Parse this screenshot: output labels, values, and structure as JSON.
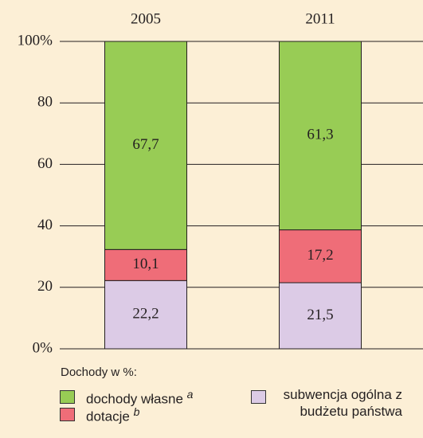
{
  "chart_data": {
    "type": "stacked_bar",
    "categories": [
      "2005",
      "2011"
    ],
    "ylim": [
      0,
      100
    ],
    "yticks": [
      {
        "value": 0,
        "label": "0%"
      },
      20,
      40,
      60,
      80,
      {
        "value": 100,
        "label": "100%"
      }
    ],
    "grid": true,
    "legend_title": "Dochody w %:",
    "series": [
      {
        "name": "subwencja ogólna z budżetu państwa",
        "color": "#dccbe6",
        "values": [
          22.2,
          21.5
        ],
        "value_labels": [
          "22,2",
          "21,5"
        ]
      },
      {
        "name": "dotacje",
        "name_note": "b",
        "color": "#ef6d78",
        "values": [
          10.1,
          17.2
        ],
        "value_labels": [
          "10,1",
          "17,2"
        ]
      },
      {
        "name": "dochody własne",
        "name_note": "a",
        "color": "#98cc55",
        "values": [
          67.7,
          61.3
        ],
        "value_labels": [
          "67,7",
          "61,3"
        ]
      }
    ]
  }
}
